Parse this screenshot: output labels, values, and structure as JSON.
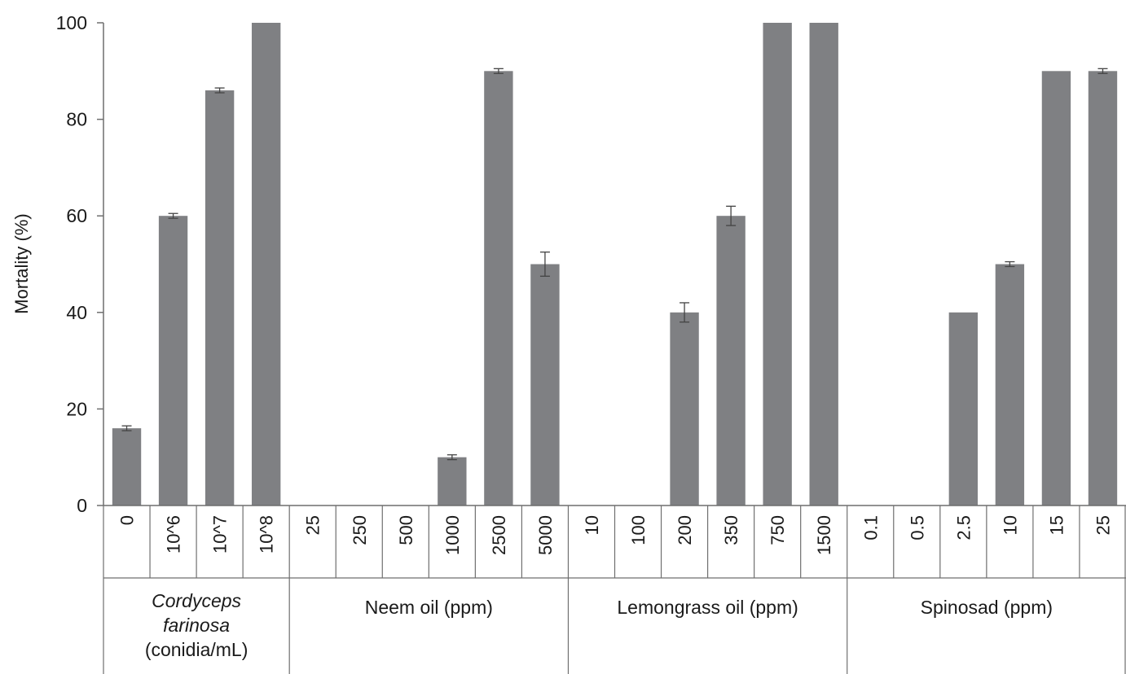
{
  "chart_data": {
    "type": "bar",
    "ylabel": "Mortality (%)",
    "xlabel": "",
    "ylim": [
      0,
      100
    ],
    "yticks": [
      0,
      20,
      40,
      60,
      80,
      100
    ],
    "grid": false,
    "legend": "none",
    "bar_color": "#7f8083",
    "groups": [
      {
        "label_lines": [
          {
            "text": "Cordyceps",
            "italic": true
          },
          {
            "text": "farinosa",
            "italic": true
          },
          {
            "text": "(conidia/mL)",
            "italic": false
          }
        ],
        "categories": [
          "0",
          "10^6",
          "10^7",
          "10^8"
        ],
        "values": [
          16,
          60,
          86,
          100
        ],
        "errors": [
          0.5,
          0.5,
          0.5,
          0
        ]
      },
      {
        "label_lines": [
          {
            "text": "Neem oil (ppm)",
            "italic": false
          }
        ],
        "categories": [
          "25",
          "250",
          "500",
          "1000",
          "2500",
          "5000"
        ],
        "values": [
          0,
          0,
          0,
          10,
          90,
          50
        ],
        "errors": [
          0,
          0,
          0,
          0.5,
          0.5,
          2.5
        ]
      },
      {
        "label_lines": [
          {
            "text": "Lemongrass oil (ppm)",
            "italic": false
          }
        ],
        "categories": [
          "10",
          "100",
          "200",
          "350",
          "750",
          "1500"
        ],
        "values": [
          0,
          0,
          40,
          60,
          100,
          100
        ],
        "errors": [
          0,
          0,
          2,
          2,
          0,
          0
        ]
      },
      {
        "label_lines": [
          {
            "text": "Spinosad (ppm)",
            "italic": false
          }
        ],
        "categories": [
          "0.1",
          "0.5",
          "2.5",
          "10",
          "15",
          "25"
        ],
        "values": [
          0,
          0,
          40,
          50,
          90,
          90
        ],
        "errors": [
          0,
          0,
          0,
          0.5,
          0,
          0.5
        ]
      }
    ]
  }
}
